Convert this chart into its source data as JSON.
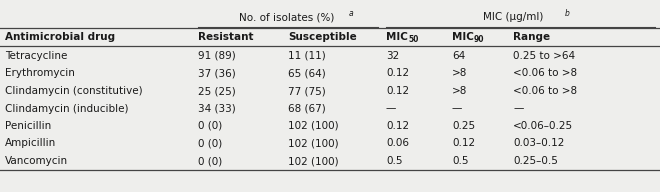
{
  "col_headers": [
    "Antimicrobial drug",
    "Resistant",
    "Susceptible",
    "MIC50",
    "MIC90",
    "Range"
  ],
  "rows": [
    [
      "Tetracycline",
      "91 (89)",
      "11 (11)",
      "32",
      "64",
      "0.25 to >64"
    ],
    [
      "Erythromycin",
      "37 (36)",
      "65 (64)",
      "0.12",
      ">8",
      "<0.06 to >8"
    ],
    [
      "Clindamycin (constitutive)",
      "25 (25)",
      "77 (75)",
      "0.12",
      ">8",
      "<0.06 to >8"
    ],
    [
      "Clindamycin (inducible)",
      "34 (33)",
      "68 (67)",
      "—",
      "—",
      "—"
    ],
    [
      "Penicillin",
      "0 (0)",
      "102 (100)",
      "0.12",
      "0.25",
      "<0.06–0.25"
    ],
    [
      "Ampicillin",
      "0 (0)",
      "102 (100)",
      "0.06",
      "0.12",
      "0.03–0.12"
    ],
    [
      "Vancomycin",
      "0 (0)",
      "102 (100)",
      "0.5",
      "0.5",
      "0.25–0.5"
    ]
  ],
  "bg_color": "#eeeeec",
  "text_color": "#1a1a1a",
  "line_color": "#444444",
  "font_size": 7.5
}
